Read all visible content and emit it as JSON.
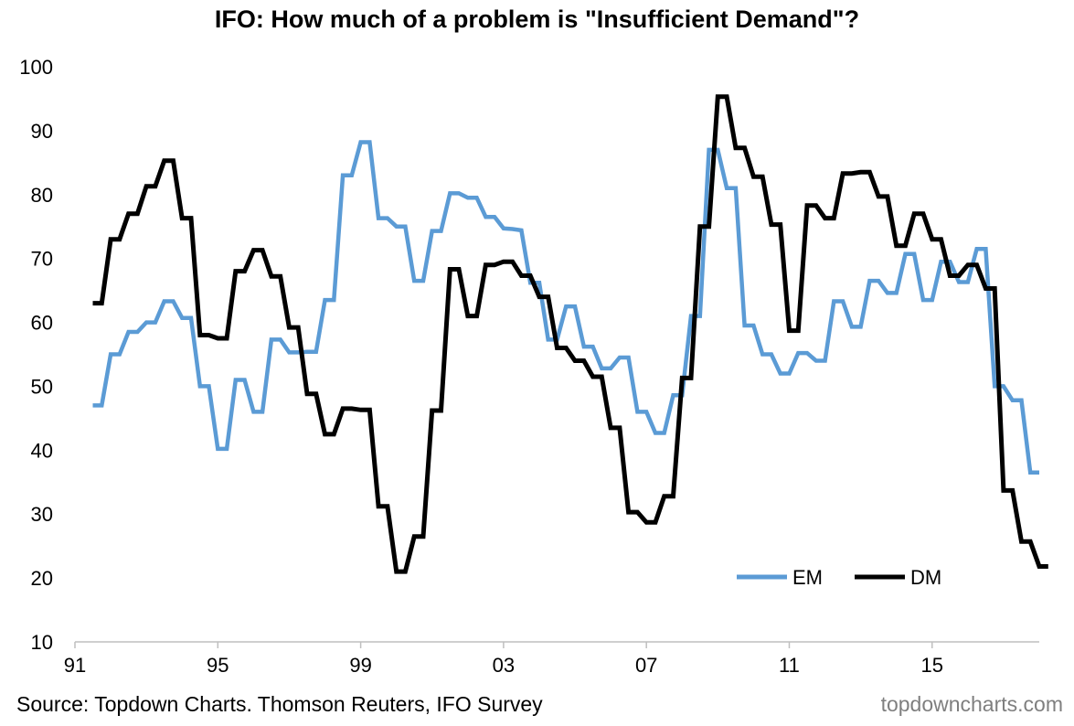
{
  "chart_data": {
    "type": "line",
    "title": "IFO: How much of a problem is \"Insufficient Demand\"?",
    "xlabel": "",
    "ylabel": "",
    "xlim": [
      1991,
      2018
    ],
    "ylim": [
      10,
      100
    ],
    "yticks": [
      10,
      20,
      30,
      40,
      50,
      60,
      70,
      80,
      90,
      100
    ],
    "xticks": [
      {
        "value": 1991,
        "label": "91"
      },
      {
        "value": 1995,
        "label": "95"
      },
      {
        "value": 1999,
        "label": "99"
      },
      {
        "value": 2003,
        "label": "03"
      },
      {
        "value": 2007,
        "label": "07"
      },
      {
        "value": 2011,
        "label": "11"
      },
      {
        "value": 2015,
        "label": "15"
      }
    ],
    "grid": false,
    "legend_position": "bottom-right",
    "series": [
      {
        "name": "EM",
        "color": "#5b9bd5",
        "points": [
          [
            1991.5,
            47
          ],
          [
            1991.75,
            47
          ],
          [
            1992.0,
            55
          ],
          [
            1992.25,
            55
          ],
          [
            1992.5,
            58.5
          ],
          [
            1992.75,
            58.5
          ],
          [
            1993.0,
            60
          ],
          [
            1993.25,
            60
          ],
          [
            1993.5,
            63.3
          ],
          [
            1993.75,
            63.3
          ],
          [
            1994.0,
            60.7
          ],
          [
            1994.25,
            60.7
          ],
          [
            1994.5,
            50
          ],
          [
            1994.75,
            50
          ],
          [
            1995.0,
            40.2
          ],
          [
            1995.25,
            40.2
          ],
          [
            1995.5,
            51
          ],
          [
            1995.75,
            51
          ],
          [
            1996.0,
            46
          ],
          [
            1996.25,
            46
          ],
          [
            1996.5,
            57.3
          ],
          [
            1996.75,
            57.3
          ],
          [
            1997.0,
            55.3
          ],
          [
            1997.25,
            55.3
          ],
          [
            1997.5,
            55.4
          ],
          [
            1997.75,
            55.4
          ],
          [
            1998.0,
            63.5
          ],
          [
            1998.25,
            63.5
          ],
          [
            1998.5,
            83
          ],
          [
            1998.75,
            83
          ],
          [
            1999.0,
            88.2
          ],
          [
            1999.25,
            88.2
          ],
          [
            1999.5,
            76.3
          ],
          [
            1999.75,
            76.3
          ],
          [
            2000.0,
            75
          ],
          [
            2000.25,
            75
          ],
          [
            2000.5,
            66.5
          ],
          [
            2000.75,
            66.5
          ],
          [
            2001.0,
            74.3
          ],
          [
            2001.25,
            74.3
          ],
          [
            2001.5,
            80.2
          ],
          [
            2001.75,
            80.2
          ],
          [
            2002.0,
            79.5
          ],
          [
            2002.25,
            79.5
          ],
          [
            2002.5,
            76.5
          ],
          [
            2002.75,
            76.5
          ],
          [
            2003.0,
            74.7
          ],
          [
            2003.25,
            74.6
          ],
          [
            2003.5,
            74.4
          ],
          [
            2003.75,
            66.2
          ],
          [
            2004.0,
            66.2
          ],
          [
            2004.25,
            57.3
          ],
          [
            2004.5,
            57.3
          ],
          [
            2004.75,
            62.5
          ],
          [
            2005.0,
            62.5
          ],
          [
            2005.25,
            56.2
          ],
          [
            2005.5,
            56.2
          ],
          [
            2005.75,
            52.8
          ],
          [
            2006.0,
            52.8
          ],
          [
            2006.25,
            54.5
          ],
          [
            2006.5,
            54.5
          ],
          [
            2006.75,
            46
          ],
          [
            2007.0,
            46
          ],
          [
            2007.25,
            42.7
          ],
          [
            2007.5,
            42.7
          ],
          [
            2007.75,
            48.6
          ],
          [
            2008.0,
            48.6
          ],
          [
            2008.25,
            61
          ],
          [
            2008.5,
            61
          ],
          [
            2008.75,
            87
          ],
          [
            2009.0,
            87
          ],
          [
            2009.25,
            81
          ],
          [
            2009.5,
            81
          ],
          [
            2009.75,
            59.5
          ],
          [
            2010.0,
            59.5
          ],
          [
            2010.25,
            55
          ],
          [
            2010.5,
            55
          ],
          [
            2010.75,
            52
          ],
          [
            2011.0,
            52
          ],
          [
            2011.25,
            55.2
          ],
          [
            2011.5,
            55.2
          ],
          [
            2011.75,
            54
          ],
          [
            2012.0,
            54
          ],
          [
            2012.25,
            63.3
          ],
          [
            2012.5,
            63.3
          ],
          [
            2012.75,
            59.3
          ],
          [
            2013.0,
            59.3
          ],
          [
            2013.25,
            66.5
          ],
          [
            2013.5,
            66.5
          ],
          [
            2013.75,
            64.6
          ],
          [
            2014.0,
            64.6
          ],
          [
            2014.25,
            70.7
          ],
          [
            2014.5,
            70.7
          ],
          [
            2014.75,
            63.5
          ],
          [
            2015.0,
            63.5
          ],
          [
            2015.25,
            69.5
          ],
          [
            2015.5,
            69.5
          ],
          [
            2015.75,
            66.3
          ],
          [
            2016.0,
            66.3
          ],
          [
            2016.25,
            71.5
          ],
          [
            2016.5,
            71.5
          ],
          [
            2016.75,
            50
          ],
          [
            2017.0,
            50
          ],
          [
            2017.25,
            47.8
          ],
          [
            2017.5,
            47.8
          ],
          [
            2017.75,
            36.5
          ],
          [
            2018.0,
            36.5
          ]
        ]
      },
      {
        "name": "DM",
        "color": "#000000",
        "points": [
          [
            1991.5,
            63
          ],
          [
            1991.75,
            63
          ],
          [
            1992.0,
            73
          ],
          [
            1992.25,
            73
          ],
          [
            1992.5,
            77
          ],
          [
            1992.75,
            77
          ],
          [
            1993.0,
            81.3
          ],
          [
            1993.25,
            81.3
          ],
          [
            1993.5,
            85.3
          ],
          [
            1993.75,
            85.3
          ],
          [
            1994.0,
            76.3
          ],
          [
            1994.25,
            76.3
          ],
          [
            1994.5,
            58
          ],
          [
            1994.75,
            58
          ],
          [
            1995.0,
            57.5
          ],
          [
            1995.25,
            57.5
          ],
          [
            1995.5,
            68
          ],
          [
            1995.75,
            68
          ],
          [
            1996.0,
            71.3
          ],
          [
            1996.25,
            71.3
          ],
          [
            1996.5,
            67.2
          ],
          [
            1996.75,
            67.2
          ],
          [
            1997.0,
            59.2
          ],
          [
            1997.25,
            59.2
          ],
          [
            1997.5,
            48.8
          ],
          [
            1997.75,
            48.8
          ],
          [
            1998.0,
            42.5
          ],
          [
            1998.25,
            42.5
          ],
          [
            1998.5,
            46.5
          ],
          [
            1998.75,
            46.5
          ],
          [
            1999.0,
            46.3
          ],
          [
            1999.25,
            46.3
          ],
          [
            1999.5,
            31.2
          ],
          [
            1999.75,
            31.2
          ],
          [
            2000.0,
            21
          ],
          [
            2000.25,
            21
          ],
          [
            2000.5,
            26.5
          ],
          [
            2000.75,
            26.5
          ],
          [
            2001.0,
            46.2
          ],
          [
            2001.25,
            46.2
          ],
          [
            2001.5,
            68.3
          ],
          [
            2001.75,
            68.3
          ],
          [
            2002.0,
            61
          ],
          [
            2002.25,
            61
          ],
          [
            2002.5,
            69
          ],
          [
            2002.75,
            69
          ],
          [
            2003.0,
            69.5
          ],
          [
            2003.25,
            69.5
          ],
          [
            2003.5,
            67.3
          ],
          [
            2003.75,
            67.3
          ],
          [
            2004.0,
            64
          ],
          [
            2004.25,
            64
          ],
          [
            2004.5,
            56
          ],
          [
            2004.75,
            56
          ],
          [
            2005.0,
            54
          ],
          [
            2005.25,
            54
          ],
          [
            2005.5,
            51.5
          ],
          [
            2005.75,
            51.5
          ],
          [
            2006.0,
            43.5
          ],
          [
            2006.25,
            43.5
          ],
          [
            2006.5,
            30.3
          ],
          [
            2006.75,
            30.3
          ],
          [
            2007.0,
            28.7
          ],
          [
            2007.25,
            28.7
          ],
          [
            2007.5,
            32.8
          ],
          [
            2007.75,
            32.8
          ],
          [
            2008.0,
            51.3
          ],
          [
            2008.25,
            51.3
          ],
          [
            2008.5,
            75
          ],
          [
            2008.75,
            75
          ],
          [
            2009.0,
            95.3
          ],
          [
            2009.25,
            95.3
          ],
          [
            2009.5,
            87.3
          ],
          [
            2009.75,
            87.3
          ],
          [
            2010.0,
            82.8
          ],
          [
            2010.25,
            82.8
          ],
          [
            2010.5,
            75.3
          ],
          [
            2010.75,
            75.3
          ],
          [
            2011.0,
            58.7
          ],
          [
            2011.25,
            58.7
          ],
          [
            2011.5,
            78.3
          ],
          [
            2011.75,
            78.3
          ],
          [
            2012.0,
            76.3
          ],
          [
            2012.25,
            76.3
          ],
          [
            2012.5,
            83.3
          ],
          [
            2012.75,
            83.3
          ],
          [
            2013.0,
            83.5
          ],
          [
            2013.25,
            83.5
          ],
          [
            2013.5,
            79.7
          ],
          [
            2013.75,
            79.7
          ],
          [
            2014.0,
            72
          ],
          [
            2014.25,
            72
          ],
          [
            2014.5,
            77
          ],
          [
            2014.75,
            77
          ],
          [
            2015.0,
            73
          ],
          [
            2015.25,
            73
          ],
          [
            2015.5,
            67.3
          ],
          [
            2015.75,
            67.3
          ],
          [
            2016.0,
            69
          ],
          [
            2016.25,
            69
          ],
          [
            2016.5,
            65.3
          ],
          [
            2016.75,
            65.3
          ],
          [
            2017.0,
            33.7
          ],
          [
            2017.25,
            33.7
          ],
          [
            2017.5,
            25.7
          ],
          [
            2017.75,
            25.7
          ],
          [
            2018.0,
            21.8
          ],
          [
            2018.25,
            21.8
          ]
        ]
      }
    ]
  },
  "footer": {
    "source": "Source: Topdown Charts. Thomson Reuters, IFO Survey",
    "brand": "topdowncharts.com"
  }
}
